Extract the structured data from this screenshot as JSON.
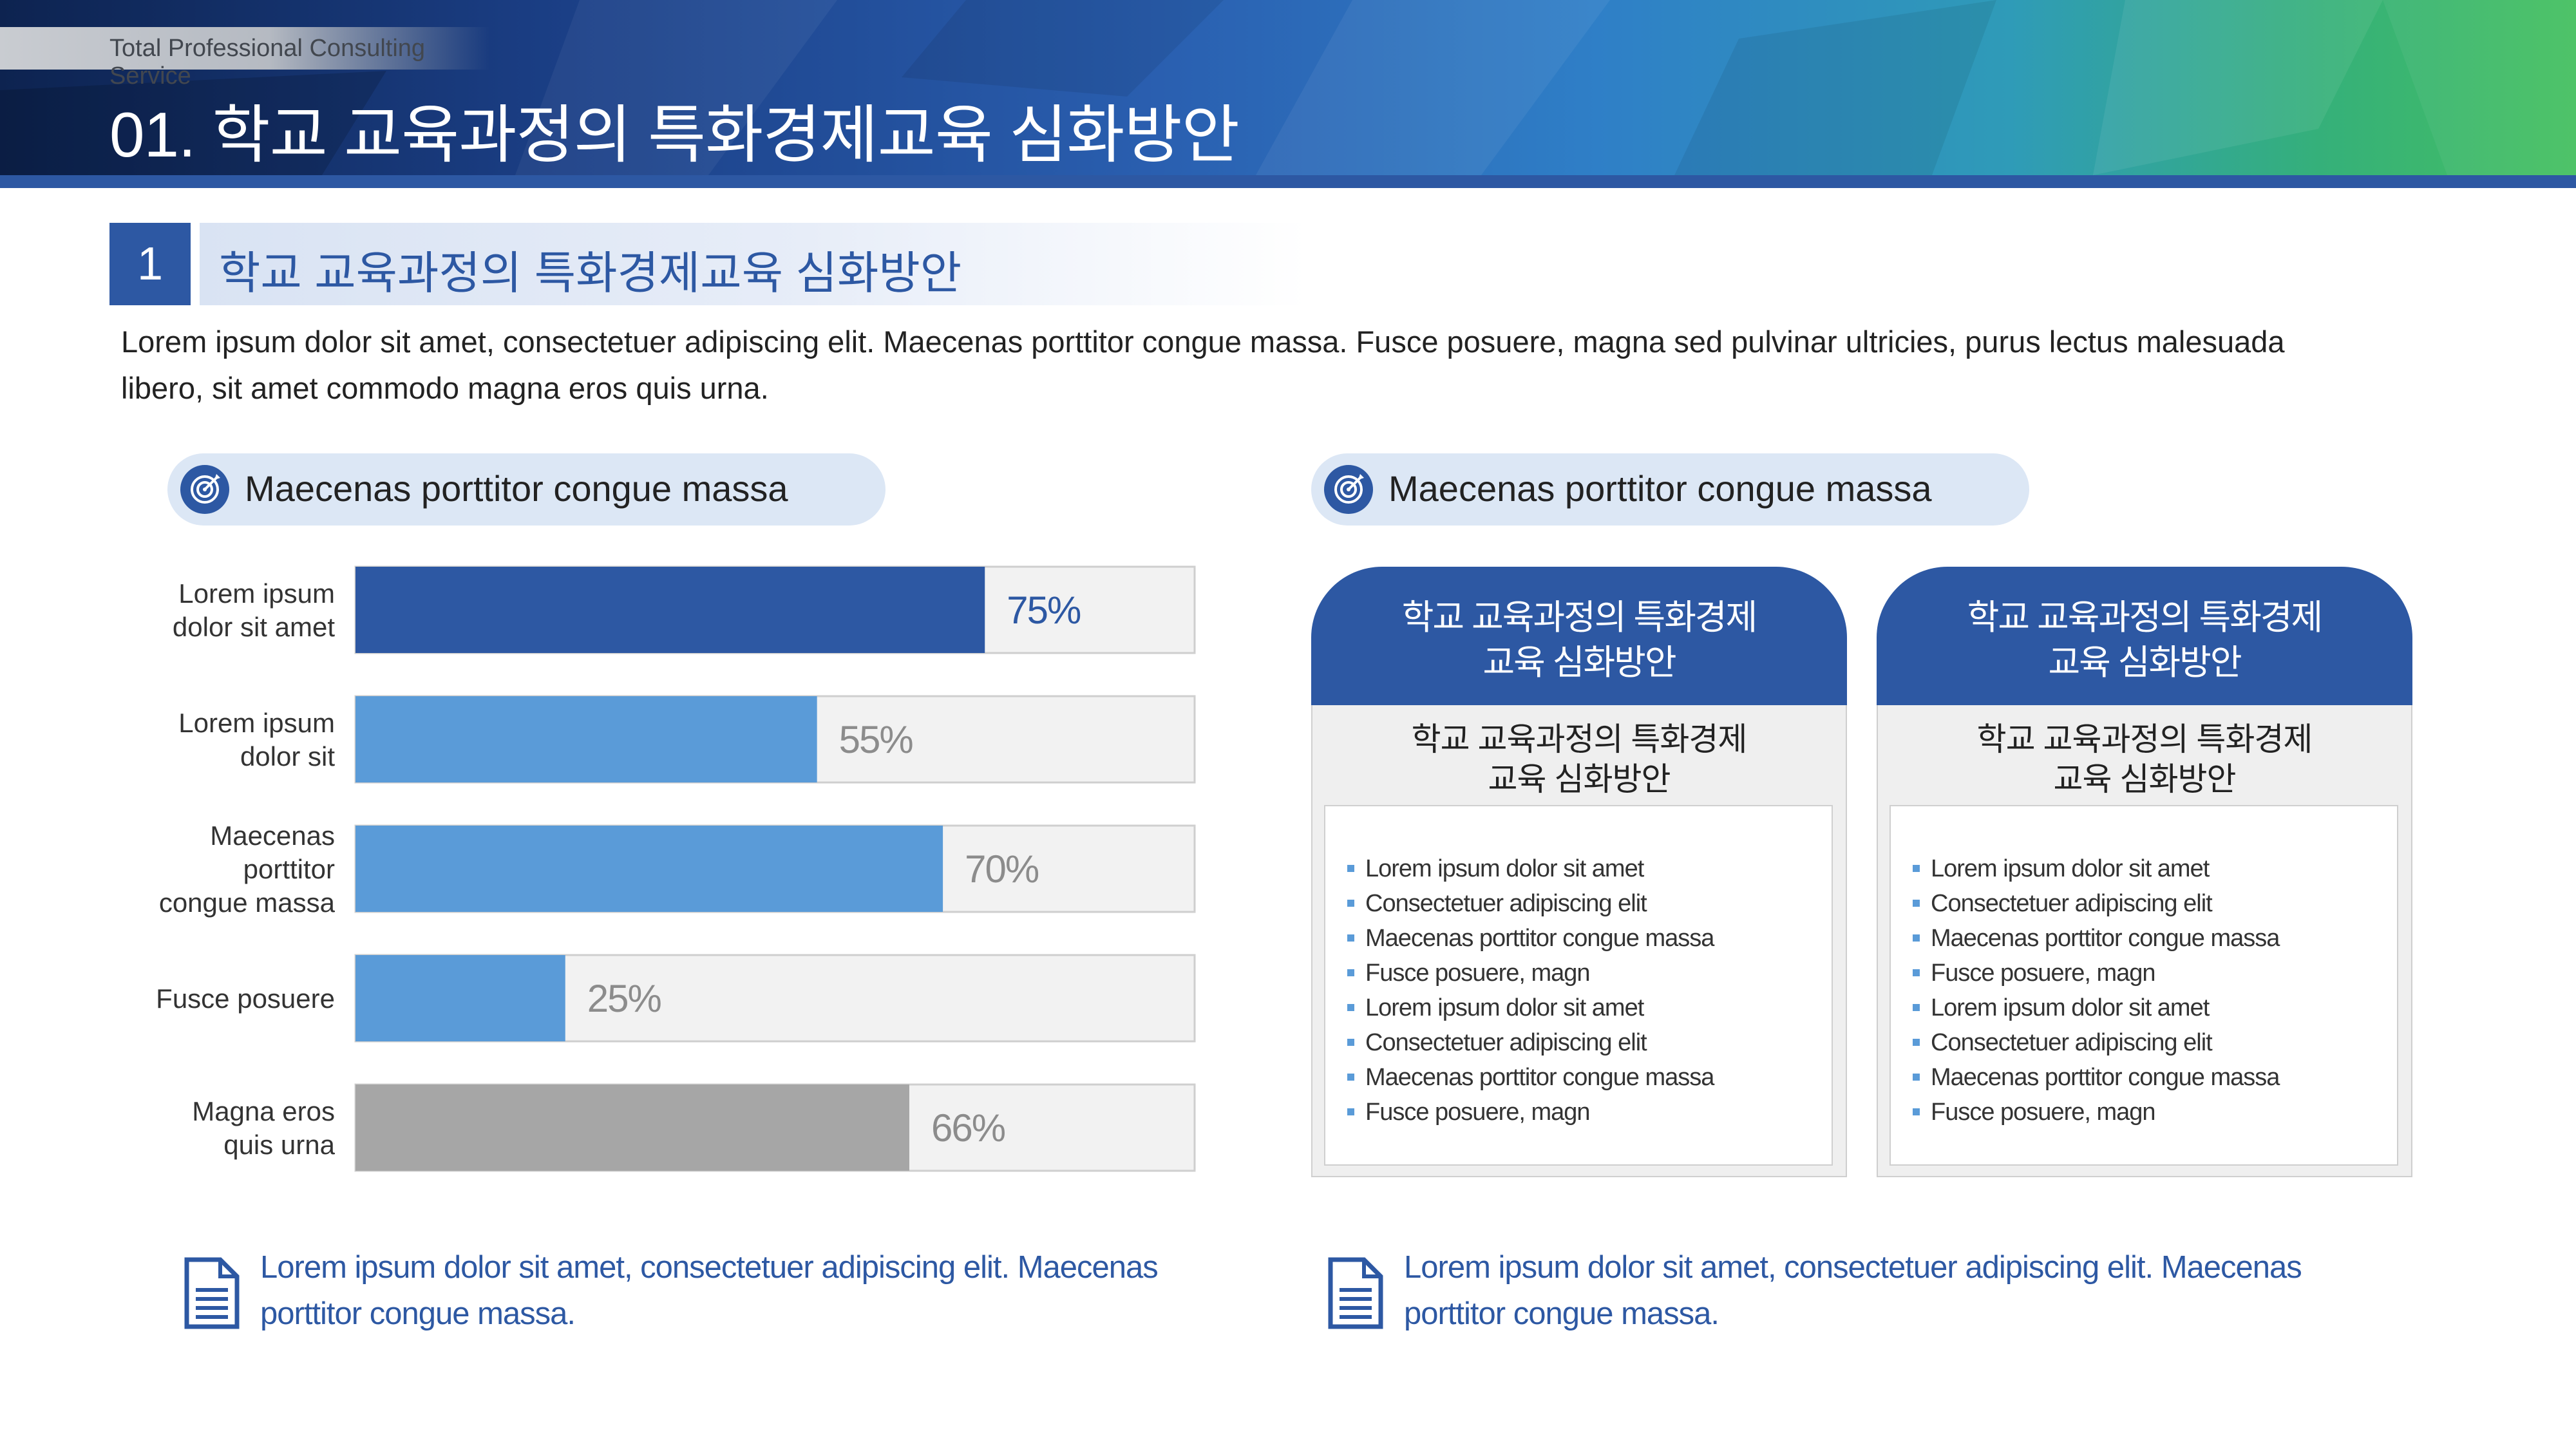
{
  "header": {
    "service_tag": "Total Professional Consulting Service",
    "title": "01. 학교 교육과정의 특화경제교육 심화방안"
  },
  "section": {
    "number": "1",
    "title": "학교 교육과정의 특화경제교육 심화방안"
  },
  "intro": "Lorem ipsum dolor sit amet, consectetuer adipiscing elit. Maecenas porttitor congue massa. Fusce posuere, magna sed pulvinar ultricies, purus lectus malesuada libero, sit amet commodo magna eros quis urna.",
  "left_panel": {
    "heading": "Maecenas porttitor congue massa",
    "icon": "target-icon"
  },
  "right_panel": {
    "heading": "Maecenas porttitor congue massa",
    "icon": "target-icon"
  },
  "chart_data": {
    "type": "bar",
    "orientation": "horizontal",
    "categories": [
      [
        "Lorem ipsum",
        "dolor sit amet"
      ],
      [
        "Lorem ipsum",
        "dolor sit"
      ],
      [
        "Maecenas",
        "porttitor",
        "congue massa"
      ],
      [
        "Fusce posuere"
      ],
      [
        "Magna eros",
        "quis urna"
      ]
    ],
    "values": [
      75,
      55,
      70,
      25,
      66
    ],
    "value_labels": [
      "75%",
      "55%",
      "70%",
      "25%",
      "66%"
    ],
    "xlim": [
      0,
      100
    ],
    "bar_colors": [
      "#2d58a3",
      "#5a9bd8",
      "#5a9bd8",
      "#5a9bd8",
      "#a6a6a6"
    ],
    "label_colors": [
      "#2d58a3",
      "#8c8c8c",
      "#8c8c8c",
      "#8c8c8c",
      "#8c8c8c"
    ],
    "grid": false
  },
  "cards": [
    {
      "head": [
        "학교 교육과정의 특화경제",
        "교육 심화방안"
      ],
      "sub": [
        "학교 교육과정의 특화경제",
        "교육 심화방안"
      ],
      "items": [
        "Lorem ipsum dolor sit amet",
        "Consectetuer adipiscing elit",
        "Maecenas porttitor congue massa",
        "Fusce posuere, magn",
        "Lorem ipsum dolor sit amet",
        "Consectetuer adipiscing elit",
        "Maecenas porttitor congue massa",
        "Fusce posuere, magn"
      ]
    },
    {
      "head": [
        "학교 교육과정의 특화경제",
        "교육 심화방안"
      ],
      "sub": [
        "학교 교육과정의 특화경제",
        "교육 심화방안"
      ],
      "items": [
        "Lorem ipsum dolor sit amet",
        "Consectetuer adipiscing elit",
        "Maecenas porttitor congue massa",
        "Fusce posuere, magn",
        "Lorem ipsum dolor sit amet",
        "Consectetuer adipiscing elit",
        "Maecenas porttitor congue massa",
        "Fusce posuere, magn"
      ]
    }
  ],
  "notes": {
    "left": "Lorem ipsum dolor sit amet, consectetuer adipiscing elit. Maecenas porttitor congue massa.",
    "right": "Lorem ipsum dolor sit amet, consectetuer adipiscing elit. Maecenas porttitor congue massa.",
    "icon": "document-icon"
  },
  "colors": {
    "primary": "#2d58a3",
    "accent": "#5a9bd8",
    "neutral": "#a6a6a6",
    "pill_bg": "#dce7f5"
  }
}
